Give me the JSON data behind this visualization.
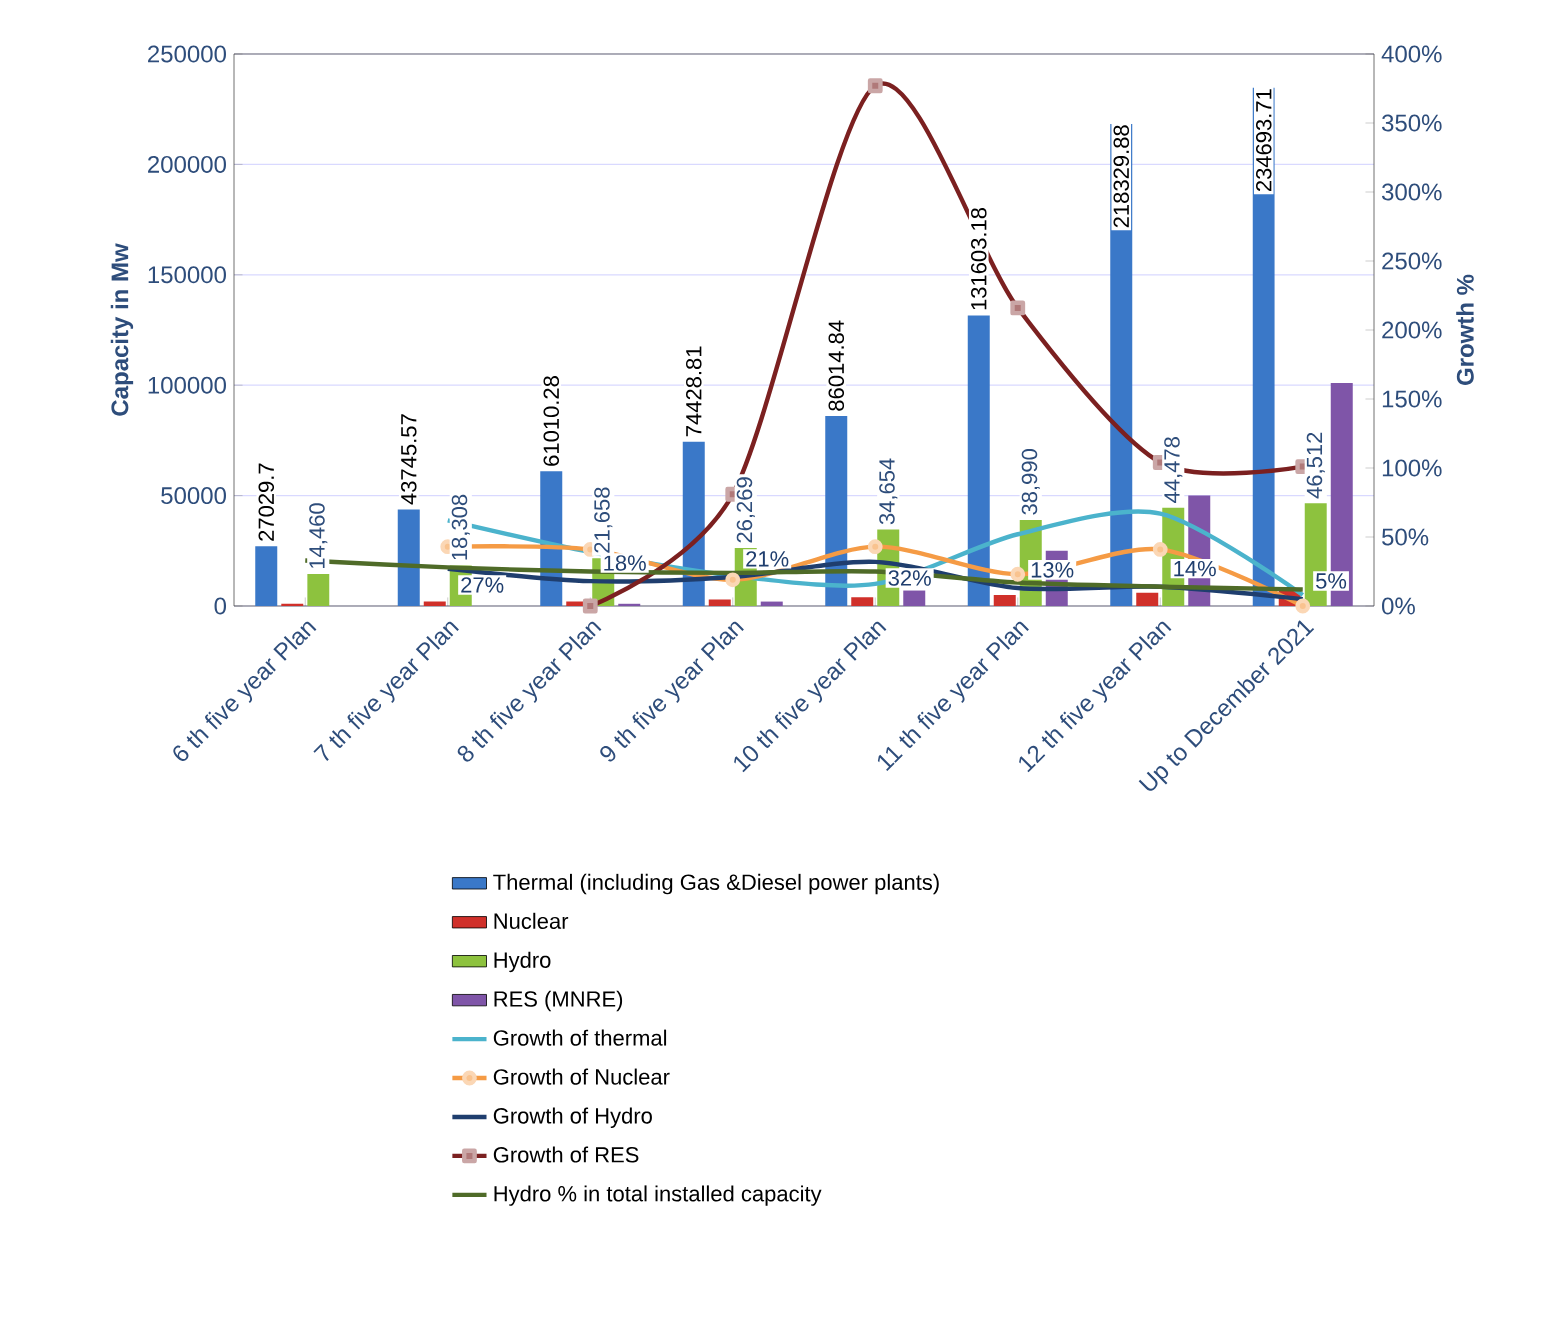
{
  "chart_data": {
    "type": "bar",
    "ylabel": "Capacity in Mw",
    "y2label": "Growth %",
    "categories": [
      "6 th five year Plan",
      "7 th five year Plan",
      "8 th five year Plan",
      "9 th five year Plan",
      "10 th five year Plan",
      "11 th five year Plan",
      "12 th five year Plan",
      "Up to December 2021"
    ],
    "ylim": [
      0,
      250000
    ],
    "yticks": [
      0,
      50000,
      100000,
      150000,
      200000,
      250000
    ],
    "y2lim": [
      0,
      400
    ],
    "y2ticks": [
      {
        "value": 0,
        "label": "0%"
      },
      {
        "value": 50,
        "label": "50%"
      },
      {
        "value": 100,
        "label": "100%"
      },
      {
        "value": 150,
        "label": "150%"
      },
      {
        "value": 200,
        "label": "200%"
      },
      {
        "value": 250,
        "label": "250%"
      },
      {
        "value": 300,
        "label": "300%"
      },
      {
        "value": 350,
        "label": "350%"
      },
      {
        "value": 400,
        "label": "400%"
      }
    ],
    "grid": "y",
    "legend": "bottom",
    "series": [
      {
        "name": "Thermal (including Gas &Diesel power plants)",
        "color": "#3a78c8",
        "values": [
          27029.7,
          43745.57,
          61010.28,
          74428.81,
          86014.84,
          131603.18,
          218329.88,
          234693.71
        ],
        "value_labels": [
          "27029.7",
          "43745.57",
          "61010.28",
          "74428.81",
          "86014.84",
          "131603.18",
          "218329.88",
          "234693.71"
        ]
      },
      {
        "name": "Nuclear",
        "color": "#d0302a",
        "values": [
          1000,
          2000,
          2000,
          3000,
          4000,
          5000,
          6000,
          7000
        ]
      },
      {
        "name": "Hydro",
        "color": "#8dc23e",
        "values": [
          14460,
          18308,
          21658,
          26269,
          34654,
          38990,
          44478,
          46512
        ],
        "value_labels": [
          "14,460",
          "18,308",
          "21,658",
          "26,269",
          "34,654",
          "38,990",
          "44,478",
          "46,512"
        ]
      },
      {
        "name": "RES (MNRE)",
        "color": "#7f55a8",
        "values": [
          0,
          0,
          1000,
          2000,
          7000,
          25000,
          50000,
          101000
        ]
      },
      {
        "name": "Growth of thermal",
        "type": "line",
        "axis": "y2",
        "color": "#4bb3cc",
        "marker": "none",
        "values": [
          null,
          62,
          39,
          22,
          16,
          52,
          67,
          8
        ]
      },
      {
        "name": "Growth of Nuclear",
        "type": "line",
        "axis": "y2",
        "color": "#f59b45",
        "marker": "circle",
        "values": [
          null,
          43,
          41,
          19,
          43,
          23,
          41,
          0
        ]
      },
      {
        "name": "Growth of Hydro",
        "type": "line",
        "axis": "y2",
        "color": "#1f3e6e",
        "marker": "none",
        "values": [
          null,
          27,
          18,
          21,
          32,
          13,
          14,
          5
        ],
        "value_labels": [
          null,
          "27%",
          "18%",
          "21%",
          "32%",
          "13%",
          "14%",
          "5%"
        ]
      },
      {
        "name": "Growth of RES",
        "type": "line",
        "axis": "y2",
        "color": "#7b2020",
        "marker": "square",
        "values": [
          null,
          null,
          0,
          81,
          377,
          216,
          104,
          101
        ]
      },
      {
        "name": "Hydro % in total installed capacity",
        "type": "line",
        "axis": "y2",
        "color": "#4f6b28",
        "marker": "none",
        "values": [
          33,
          28,
          25,
          24,
          25,
          17,
          14,
          12
        ]
      }
    ]
  }
}
